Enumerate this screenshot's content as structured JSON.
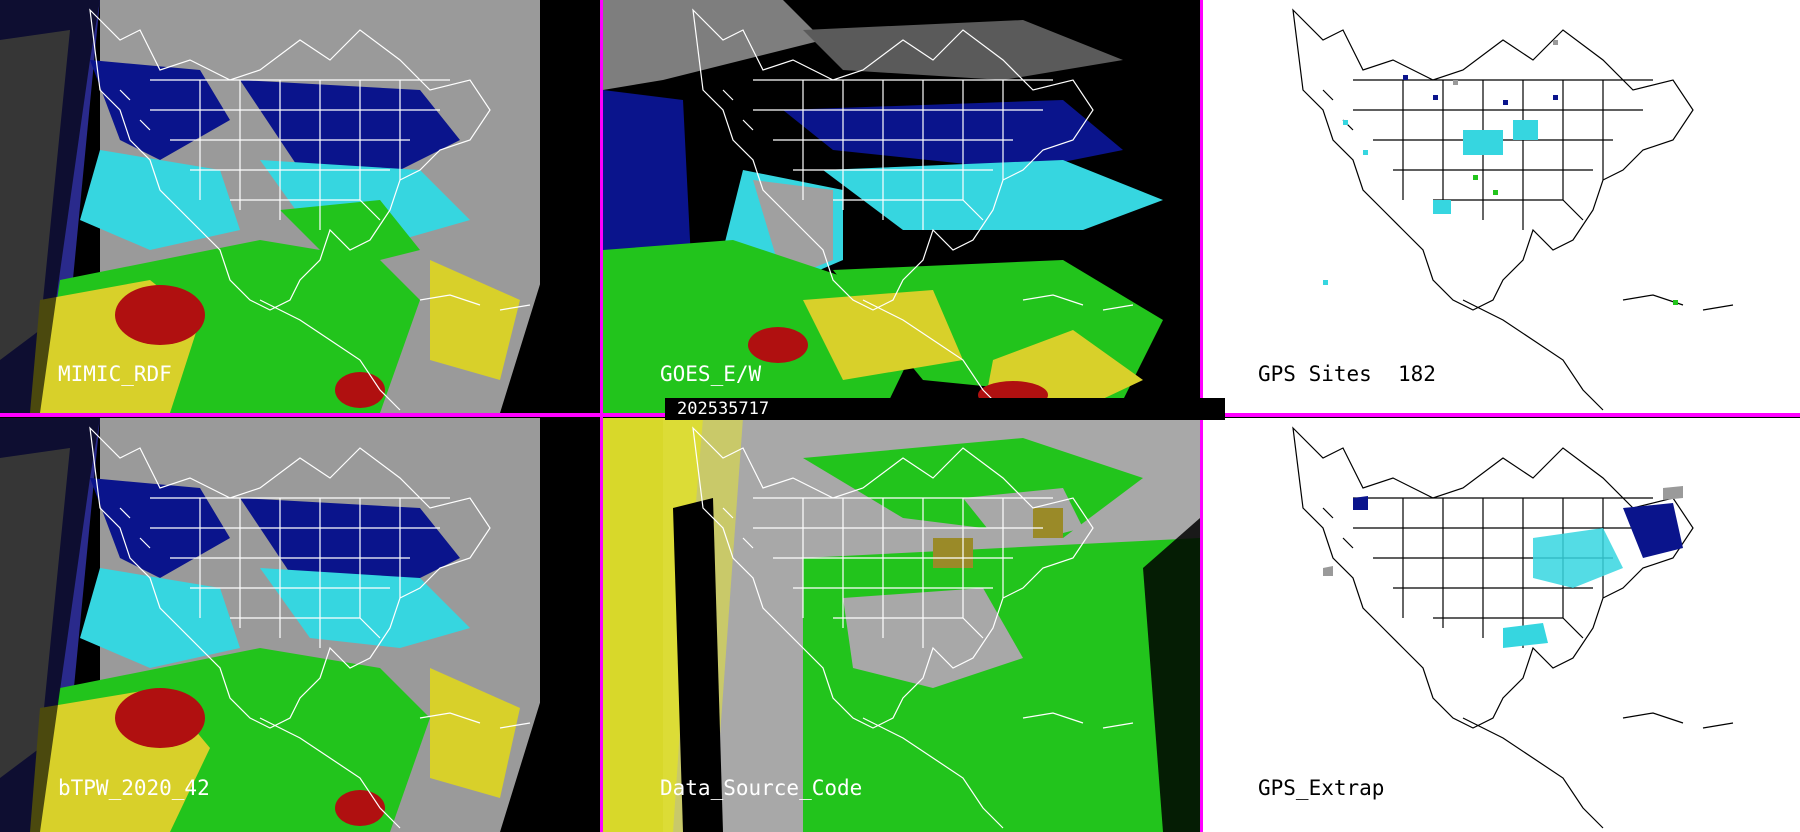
{
  "timestamp": "202535717",
  "panels": [
    {
      "id": "mimic-rdf",
      "label": "MIMIC_RDF",
      "style": "dark"
    },
    {
      "id": "goes-ew",
      "label": "GOES_E/W",
      "style": "dark"
    },
    {
      "id": "gps-sites",
      "label": "GPS Sites",
      "value": "182",
      "style": "light"
    },
    {
      "id": "btpw",
      "label": "bTPW_2020_42",
      "style": "dark"
    },
    {
      "id": "data-source",
      "label": "Data_Source_Code",
      "style": "dark"
    },
    {
      "id": "gps-extrap",
      "label": "GPS_Extrap",
      "style": "light"
    }
  ],
  "colors": {
    "divider": "#ff00ff",
    "dry_gray": "#9a9a9a",
    "blue": "#0a148c",
    "cyan": "#36d6e0",
    "green": "#22c41c",
    "yellow": "#d8d02a",
    "red": "#b01010"
  }
}
